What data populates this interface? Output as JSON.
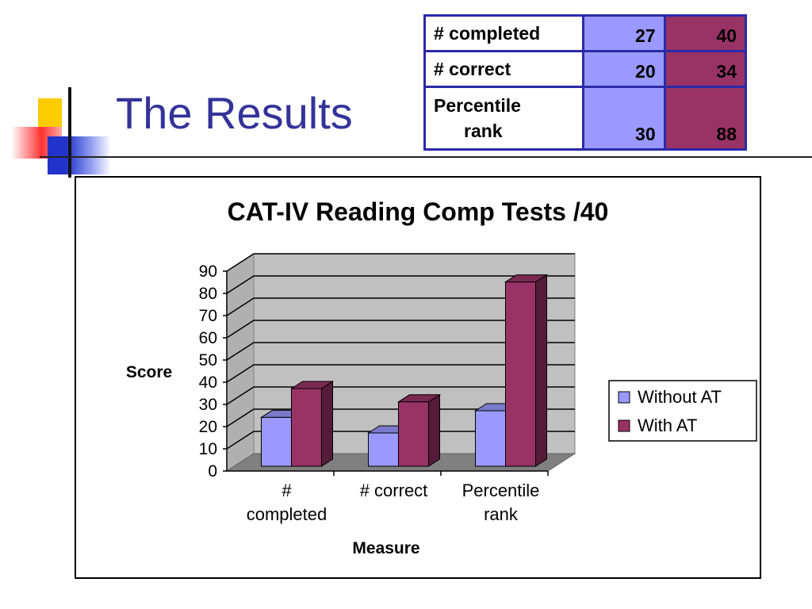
{
  "slide": {
    "title": "The Results"
  },
  "summary_table": {
    "rows": [
      {
        "label": "# completed",
        "without_at": "27",
        "with_at": "40"
      },
      {
        "label": "# correct",
        "without_at": "20",
        "with_at": "34"
      },
      {
        "label_line1": "Percentile",
        "label_line2": "rank",
        "without_at": "30",
        "with_at": "88"
      }
    ]
  },
  "chart_data": {
    "type": "bar",
    "title": "CAT-IV Reading Comp Tests  /40",
    "xlabel": "Measure",
    "ylabel": "Score",
    "ylim": [
      0,
      90
    ],
    "yticks": [
      0,
      10,
      20,
      30,
      40,
      50,
      60,
      70,
      80,
      90
    ],
    "categories": [
      {
        "line1": "#",
        "line2": "completed"
      },
      {
        "line1": "# correct",
        "line2": ""
      },
      {
        "line1": "Percentile",
        "line2": "rank"
      }
    ],
    "series": [
      {
        "name": "Without  AT",
        "color": "#9999ff",
        "values": [
          27,
          20,
          30
        ]
      },
      {
        "name": "With AT",
        "color": "#993366",
        "values": [
          40,
          34,
          88
        ]
      }
    ],
    "legend_position": "right",
    "grid": true,
    "style": "3d"
  }
}
